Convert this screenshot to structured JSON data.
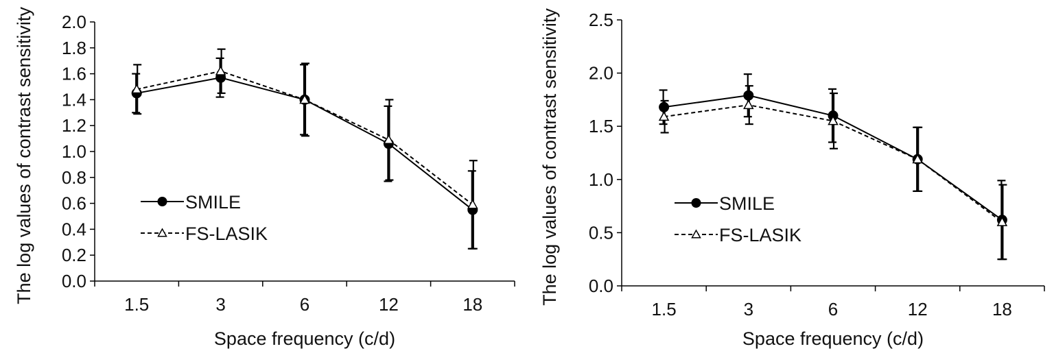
{
  "chart_data": [
    {
      "type": "line",
      "title": "",
      "xlabel": "Space frequency (c/d)",
      "ylabel": "The log values of contrast sensitivity",
      "categories": [
        "1.5",
        "3",
        "6",
        "12",
        "18"
      ],
      "ylim": [
        0,
        2.0
      ],
      "yticks": [
        "0.0",
        "0.2",
        "0.4",
        "0.6",
        "0.8",
        "1.0",
        "1.2",
        "1.4",
        "1.6",
        "1.8",
        "2.0"
      ],
      "grid": false,
      "legend": "center-left",
      "series": [
        {
          "name": "SMILE",
          "values": [
            1.45,
            1.57,
            1.4,
            1.06,
            0.55
          ],
          "errors": [
            0.15,
            0.15,
            0.27,
            0.29,
            0.3
          ],
          "line_style": "solid",
          "marker": "filled-circle",
          "color": "#000000"
        },
        {
          "name": "FS-LASIK",
          "values": [
            1.48,
            1.62,
            1.4,
            1.09,
            0.59
          ],
          "errors": [
            0.19,
            0.17,
            0.28,
            0.31,
            0.34
          ],
          "line_style": "dashed",
          "marker": "open-triangle",
          "color": "#000000"
        }
      ]
    },
    {
      "type": "line",
      "title": "",
      "xlabel": "Space frequency (c/d)",
      "ylabel": "The log values of contrast sensitivity",
      "categories": [
        "1.5",
        "3",
        "6",
        "12",
        "18"
      ],
      "ylim": [
        0,
        2.5
      ],
      "yticks": [
        "0.0",
        "0.5",
        "1.0",
        "1.5",
        "2.0",
        "2.5"
      ],
      "grid": false,
      "legend": "center-left",
      "series": [
        {
          "name": "SMILE",
          "values": [
            1.68,
            1.79,
            1.6,
            1.19,
            0.62
          ],
          "errors": [
            0.16,
            0.2,
            0.25,
            0.3,
            0.37
          ],
          "line_style": "solid",
          "marker": "filled-circle",
          "color": "#000000"
        },
        {
          "name": "FS-LASIK",
          "values": [
            1.59,
            1.7,
            1.55,
            1.19,
            0.6
          ],
          "errors": [
            0.15,
            0.18,
            0.26,
            0.3,
            0.35
          ],
          "line_style": "dashed",
          "marker": "open-triangle",
          "color": "#000000"
        }
      ]
    }
  ]
}
